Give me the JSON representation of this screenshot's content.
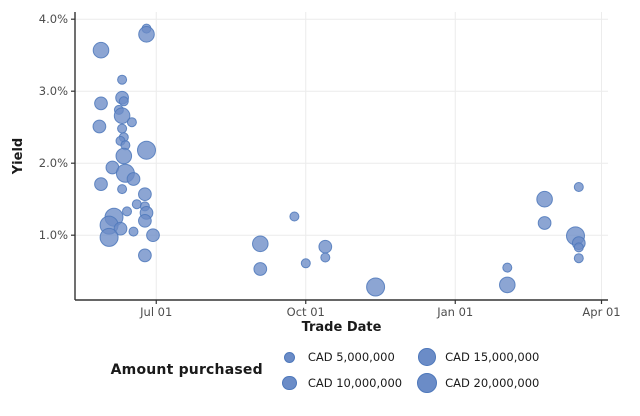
{
  "colors": {
    "bubble_fill": "#6b8cc7",
    "bubble_stroke": "#4e78bb",
    "axis_line": "#333333",
    "tick_text": "#4d4d4d",
    "title_text": "#1a1a1a",
    "grid_line": "#ececec"
  },
  "chart_data": {
    "type": "scatter",
    "subtype": "bubble",
    "title": "",
    "xlabel": "Trade Date",
    "ylabel": "Yield",
    "x_tick_labels": [
      "Jul 01",
      "Oct 01",
      "Jan 01",
      "Apr 01"
    ],
    "y_tick_labels": [
      "1.0%",
      "2.0%",
      "3.0%",
      "4.0%"
    ],
    "x_range_dates": [
      "May 12",
      "Apr 05"
    ],
    "ylim": [
      0.1,
      4.1
    ],
    "grid": true,
    "size_encoding": "amount_cad",
    "size_ref_amount_cad": 5000000,
    "size_ref_radius_px": 4.5,
    "legend": {
      "title": "Amount purchased",
      "position": "bottom",
      "entries": [
        {
          "label": "CAD 5,000,000",
          "amount_cad": 5000000
        },
        {
          "label": "CAD 10,000,000",
          "amount_cad": 10000000
        },
        {
          "label": "CAD 15,000,000",
          "amount_cad": 15000000
        },
        {
          "label": "CAD 20,000,000",
          "amount_cad": 20000000
        }
      ]
    },
    "columns": [
      "trade_date",
      "yield_pct",
      "amount_cad"
    ],
    "points": [
      [
        "May 28",
        3.57,
        15000000
      ],
      [
        "Jun 25",
        3.87,
        5000000
      ],
      [
        "Jun 25",
        3.79,
        15000000
      ],
      [
        "Jun 10",
        3.16,
        5000000
      ],
      [
        "Jun 10",
        2.91,
        10000000
      ],
      [
        "Jun 11",
        2.86,
        5000000
      ],
      [
        "May 28",
        2.83,
        10000000
      ],
      [
        "Jun 08",
        2.74,
        5000000
      ],
      [
        "Jun 10",
        2.66,
        15000000
      ],
      [
        "Jun 16",
        2.57,
        5000000
      ],
      [
        "May 27",
        2.51,
        10000000
      ],
      [
        "Jun 10",
        2.48,
        5000000
      ],
      [
        "Jun 11",
        2.36,
        5000000
      ],
      [
        "Jun 09",
        2.31,
        5000000
      ],
      [
        "Jun 12",
        2.25,
        5000000
      ],
      [
        "Jun 25",
        2.18,
        20000000
      ],
      [
        "Jun 11",
        2.1,
        15000000
      ],
      [
        "Jun 04",
        1.94,
        10000000
      ],
      [
        "Jun 12",
        1.86,
        20000000
      ],
      [
        "Jun 17",
        1.78,
        10000000
      ],
      [
        "May 28",
        1.71,
        10000000
      ],
      [
        "Jun 10",
        1.64,
        5000000
      ],
      [
        "Jun 24",
        1.57,
        10000000
      ],
      [
        "Jun 19",
        1.43,
        5000000
      ],
      [
        "Jun 24",
        1.4,
        5000000
      ],
      [
        "Jun 13",
        1.33,
        5000000
      ],
      [
        "Jun 25",
        1.31,
        10000000
      ],
      [
        "Jun 05",
        1.25,
        20000000
      ],
      [
        "Jun 24",
        1.2,
        10000000
      ],
      [
        "Jun 02",
        1.14,
        20000000
      ],
      [
        "Jun 09",
        1.09,
        10000000
      ],
      [
        "Jun 17",
        1.05,
        5000000
      ],
      [
        "Jun 02",
        0.97,
        20000000
      ],
      [
        "Jun 29",
        1.0,
        10000000
      ],
      [
        "Jun 24",
        0.72,
        10000000
      ],
      [
        "Sep 24",
        1.26,
        5000000
      ],
      [
        "Sep 03",
        0.88,
        15000000
      ],
      [
        "Sep 03",
        0.53,
        10000000
      ],
      [
        "Oct 13",
        0.84,
        10000000
      ],
      [
        "Oct 13",
        0.69,
        5000000
      ],
      [
        "Oct 01",
        0.61,
        5000000
      ],
      [
        "Nov 13",
        0.28,
        20000000
      ],
      [
        "Feb 02",
        0.55,
        5000000
      ],
      [
        "Feb 02",
        0.31,
        15000000
      ],
      [
        "Feb 25",
        1.5,
        15000000
      ],
      [
        "Feb 25",
        1.17,
        10000000
      ],
      [
        "Mar 18",
        1.67,
        5000000
      ],
      [
        "Mar 16",
        0.99,
        20000000
      ],
      [
        "Mar 18",
        0.89,
        10000000
      ],
      [
        "Mar 18",
        0.83,
        5000000
      ],
      [
        "Mar 18",
        0.68,
        5000000
      ]
    ]
  }
}
